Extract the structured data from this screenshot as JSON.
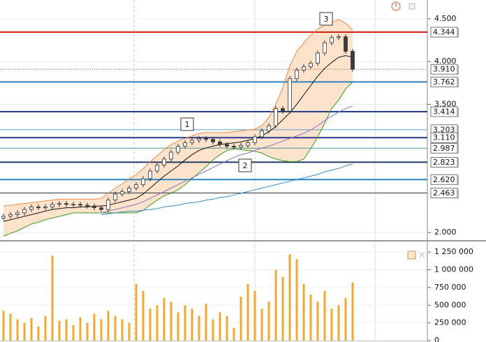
{
  "chart_data": [
    {
      "type": "candlestick",
      "ylim": [
        1.92,
        4.72
      ],
      "yticks": [
        {
          "value": 2.0,
          "label": "2.000"
        },
        {
          "value": 3.5,
          "label": "3.500"
        },
        {
          "value": 4.0,
          "label": "4.000"
        },
        {
          "value": 4.5,
          "label": "4.500"
        }
      ],
      "grid": true,
      "up_color": "#ffffff",
      "down_color": "#3c3c3c",
      "open": [
        2.17,
        2.19,
        2.21,
        2.23,
        2.27,
        2.3,
        2.29,
        2.3,
        2.33,
        2.34,
        2.33,
        2.33,
        2.32,
        2.31,
        2.29,
        2.27,
        2.38,
        2.45,
        2.48,
        2.52,
        2.56,
        2.63,
        2.72,
        2.79,
        2.86,
        2.94,
        3.01,
        3.05,
        3.08,
        3.1,
        3.09,
        3.06,
        3.03,
        3.01,
        3.0,
        3.02,
        3.05,
        3.12,
        3.19,
        3.25,
        3.45,
        3.42,
        3.8,
        3.9,
        3.94,
        3.98,
        4.1,
        4.22,
        4.28,
        4.29,
        4.12
      ],
      "high": [
        2.22,
        2.24,
        2.26,
        2.3,
        2.33,
        2.33,
        2.33,
        2.36,
        2.37,
        2.37,
        2.36,
        2.36,
        2.35,
        2.34,
        2.32,
        2.41,
        2.48,
        2.51,
        2.55,
        2.59,
        2.66,
        2.75,
        2.82,
        2.89,
        2.97,
        3.04,
        3.08,
        3.11,
        3.13,
        3.13,
        3.12,
        3.09,
        3.06,
        3.04,
        3.05,
        3.08,
        3.15,
        3.22,
        3.28,
        3.48,
        3.48,
        3.83,
        3.93,
        3.97,
        4.01,
        4.13,
        4.25,
        4.31,
        4.32,
        4.32,
        4.15
      ],
      "low": [
        2.14,
        2.16,
        2.18,
        2.2,
        2.24,
        2.26,
        2.26,
        2.27,
        2.3,
        2.3,
        2.3,
        2.29,
        2.28,
        2.26,
        2.24,
        2.24,
        2.35,
        2.42,
        2.45,
        2.49,
        2.53,
        2.6,
        2.69,
        2.76,
        2.83,
        2.91,
        2.98,
        3.02,
        3.05,
        3.06,
        3.03,
        3.0,
        2.98,
        2.97,
        2.97,
        2.99,
        3.02,
        3.09,
        3.16,
        3.22,
        3.39,
        3.39,
        3.77,
        3.87,
        3.91,
        3.95,
        4.07,
        4.19,
        4.25,
        4.09,
        3.88
      ],
      "close": [
        2.19,
        2.21,
        2.23,
        2.27,
        2.3,
        2.29,
        2.3,
        2.33,
        2.34,
        2.33,
        2.33,
        2.32,
        2.31,
        2.29,
        2.27,
        2.38,
        2.45,
        2.48,
        2.52,
        2.56,
        2.63,
        2.72,
        2.79,
        2.86,
        2.94,
        3.01,
        3.05,
        3.08,
        3.1,
        3.09,
        3.06,
        3.03,
        3.01,
        3.0,
        3.02,
        3.05,
        3.12,
        3.19,
        3.25,
        3.45,
        3.42,
        3.8,
        3.9,
        3.94,
        3.98,
        4.1,
        4.22,
        4.28,
        4.29,
        4.12,
        3.91
      ],
      "band_fill": "#fde3cc",
      "overlays": [
        {
          "color": "#f08a4a",
          "values": [
            2.31,
            2.32,
            2.33,
            2.34,
            2.35,
            2.36,
            2.37,
            2.38,
            2.39,
            2.39,
            2.39,
            2.39,
            2.39,
            2.39,
            2.4,
            2.46,
            2.52,
            2.57,
            2.63,
            2.68,
            2.75,
            2.83,
            2.9,
            2.97,
            3.03,
            3.07,
            3.1,
            3.13,
            3.16,
            3.17,
            3.17,
            3.17,
            3.17,
            3.18,
            3.19,
            3.2,
            3.21,
            3.25,
            3.35,
            3.5,
            3.7,
            3.95,
            4.12,
            4.22,
            4.31,
            4.38,
            4.43,
            4.46,
            4.49,
            4.45,
            4.37
          ]
        },
        {
          "color": "#3a9a1c",
          "values": [
            1.96,
            1.99,
            2.02,
            2.06,
            2.1,
            2.12,
            2.15,
            2.17,
            2.19,
            2.21,
            2.23,
            2.23,
            2.23,
            2.23,
            2.23,
            2.23,
            2.23,
            2.23,
            2.23,
            2.23,
            2.26,
            2.32,
            2.38,
            2.43,
            2.46,
            2.5,
            2.56,
            2.63,
            2.7,
            2.77,
            2.85,
            2.91,
            2.96,
            2.98,
            2.97,
            2.96,
            2.95,
            2.93,
            2.89,
            2.86,
            2.84,
            2.83,
            2.83,
            2.86,
            2.98,
            3.12,
            3.28,
            3.45,
            3.55,
            3.68,
            3.76
          ]
        },
        {
          "color": "#111111",
          "values": [
            2.13,
            2.15,
            2.17,
            2.19,
            2.21,
            2.23,
            2.25,
            2.27,
            2.28,
            2.29,
            2.29,
            2.3,
            2.3,
            2.31,
            2.31,
            2.32,
            2.34,
            2.36,
            2.38,
            2.4,
            2.45,
            2.52,
            2.59,
            2.66,
            2.72,
            2.78,
            2.85,
            2.91,
            2.96,
            2.99,
            3.01,
            3.03,
            3.04,
            3.05,
            3.06,
            3.08,
            3.1,
            3.13,
            3.18,
            3.24,
            3.32,
            3.4,
            3.5,
            3.61,
            3.72,
            3.83,
            3.92,
            3.99,
            4.05,
            4.07,
            4.05
          ]
        },
        {
          "color": "#8474c4",
          "values": [
            null,
            null,
            null,
            null,
            null,
            null,
            null,
            null,
            null,
            null,
            null,
            null,
            null,
            null,
            2.23,
            2.25,
            2.27,
            2.29,
            2.31,
            2.33,
            2.36,
            2.4,
            2.44,
            2.48,
            2.52,
            2.56,
            2.6,
            2.64,
            2.68,
            2.72,
            2.76,
            2.8,
            2.84,
            2.88,
            2.91,
            2.93,
            2.96,
            2.99,
            3.01,
            3.04,
            3.07,
            3.1,
            3.13,
            3.16,
            3.2,
            3.25,
            3.31,
            3.36,
            3.41,
            3.45,
            3.48
          ]
        },
        {
          "color": "#3a88c0",
          "values": [
            null,
            null,
            null,
            null,
            null,
            null,
            null,
            null,
            null,
            null,
            null,
            null,
            null,
            null,
            2.21,
            2.22,
            2.23,
            2.24,
            2.25,
            2.25,
            2.26,
            2.27,
            2.28,
            2.3,
            2.31,
            2.32,
            2.34,
            2.35,
            2.36,
            2.38,
            2.39,
            2.41,
            2.42,
            2.44,
            2.46,
            2.48,
            2.5,
            2.52,
            2.54,
            2.56,
            2.58,
            2.6,
            2.62,
            2.64,
            2.66,
            2.68,
            2.71,
            2.73,
            2.75,
            2.78,
            2.8
          ]
        }
      ],
      "levels": [
        {
          "value": 4.344,
          "label": "4.344",
          "color": "#d41f14",
          "style": "thick"
        },
        {
          "value": 3.91,
          "label": "3.910",
          "color": "#d84a40",
          "style": "dotted"
        },
        {
          "value": 3.762,
          "label": "3.762",
          "color": "#2c7fc0",
          "style": "thick"
        },
        {
          "value": 3.414,
          "label": "3.414",
          "color": "#2a3a8c",
          "style": "thick"
        },
        {
          "value": 3.203,
          "label": "3.203",
          "color": "#5aa0d0",
          "style": "thin"
        },
        {
          "value": 3.11,
          "label": "3.110",
          "color": "#2a3a8c",
          "style": "thick"
        },
        {
          "value": 2.987,
          "label": "2.987",
          "color": "#4a9a9a",
          "style": "thin"
        },
        {
          "value": 2.823,
          "label": "2.823",
          "color": "#223a66",
          "style": "thick"
        },
        {
          "value": 2.62,
          "label": "2.620",
          "color": "#2c84c4",
          "style": "thick"
        },
        {
          "value": 2.463,
          "label": "2.463",
          "color": "#333344",
          "style": "thin"
        }
      ],
      "annotations": [
        "1",
        "2",
        "3"
      ]
    },
    {
      "type": "bar",
      "ylim": [
        0,
        1390000
      ],
      "yticks": [
        0,
        {
          "value": 250000,
          "label": "250 000"
        },
        {
          "value": 500000,
          "label": "500 000"
        },
        {
          "value": 750000,
          "label": "750 000"
        },
        {
          "value": 1000000,
          "label": "1 000 000"
        },
        {
          "value": 1250000,
          "label": "1 250 000"
        }
      ],
      "color": "#f0a830",
      "values": [
        420000,
        380000,
        300000,
        250000,
        320000,
        200000,
        350000,
        1200000,
        280000,
        300000,
        220000,
        330000,
        250000,
        380000,
        300000,
        420000,
        350000,
        300000,
        250000,
        800000,
        700000,
        450000,
        500000,
        600000,
        550000,
        400000,
        500000,
        450000,
        350000,
        520000,
        300000,
        400000,
        350000,
        180000,
        620000,
        800000,
        700000,
        450000,
        550000,
        1000000,
        900000,
        1220000,
        1150000,
        800000,
        650000,
        550000,
        700000,
        450000,
        500000,
        600000,
        820000
      ]
    }
  ]
}
